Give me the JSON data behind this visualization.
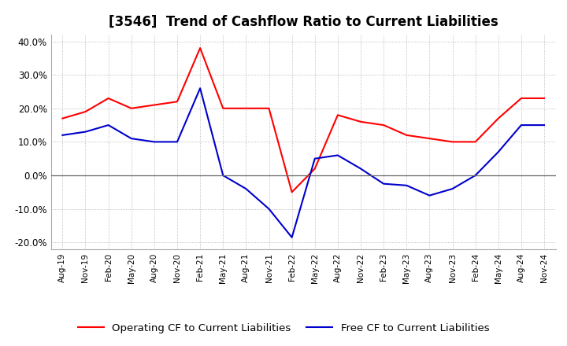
{
  "title": "[3546]  Trend of Cashflow Ratio to Current Liabilities",
  "x_labels": [
    "Aug-19",
    "Nov-19",
    "Feb-20",
    "May-20",
    "Aug-20",
    "Nov-20",
    "Feb-21",
    "May-21",
    "Aug-21",
    "Nov-21",
    "Feb-22",
    "May-22",
    "Aug-22",
    "Nov-22",
    "Feb-23",
    "May-23",
    "Aug-23",
    "Nov-23",
    "Feb-24",
    "May-24",
    "Aug-24",
    "Nov-24"
  ],
  "operating_cf": [
    0.17,
    0.19,
    0.23,
    0.2,
    0.21,
    0.22,
    0.38,
    0.2,
    0.2,
    0.2,
    -0.05,
    0.02,
    0.18,
    0.16,
    0.15,
    0.12,
    0.11,
    0.1,
    0.1,
    0.17,
    0.23,
    0.23
  ],
  "free_cf": [
    0.12,
    0.13,
    0.15,
    0.11,
    0.1,
    0.1,
    0.26,
    0.0,
    -0.04,
    -0.1,
    -0.185,
    0.05,
    0.06,
    0.02,
    -0.025,
    -0.03,
    -0.06,
    -0.04,
    0.0,
    0.07,
    0.15,
    0.15
  ],
  "ylim": [
    -0.22,
    0.42
  ],
  "yticks": [
    -0.2,
    -0.1,
    0.0,
    0.1,
    0.2,
    0.3,
    0.4
  ],
  "operating_color": "#FF0000",
  "free_color": "#0000CC",
  "background_color": "#FFFFFF",
  "grid_color": "#AAAAAA",
  "title_fontsize": 12,
  "legend_fontsize": 9.5
}
